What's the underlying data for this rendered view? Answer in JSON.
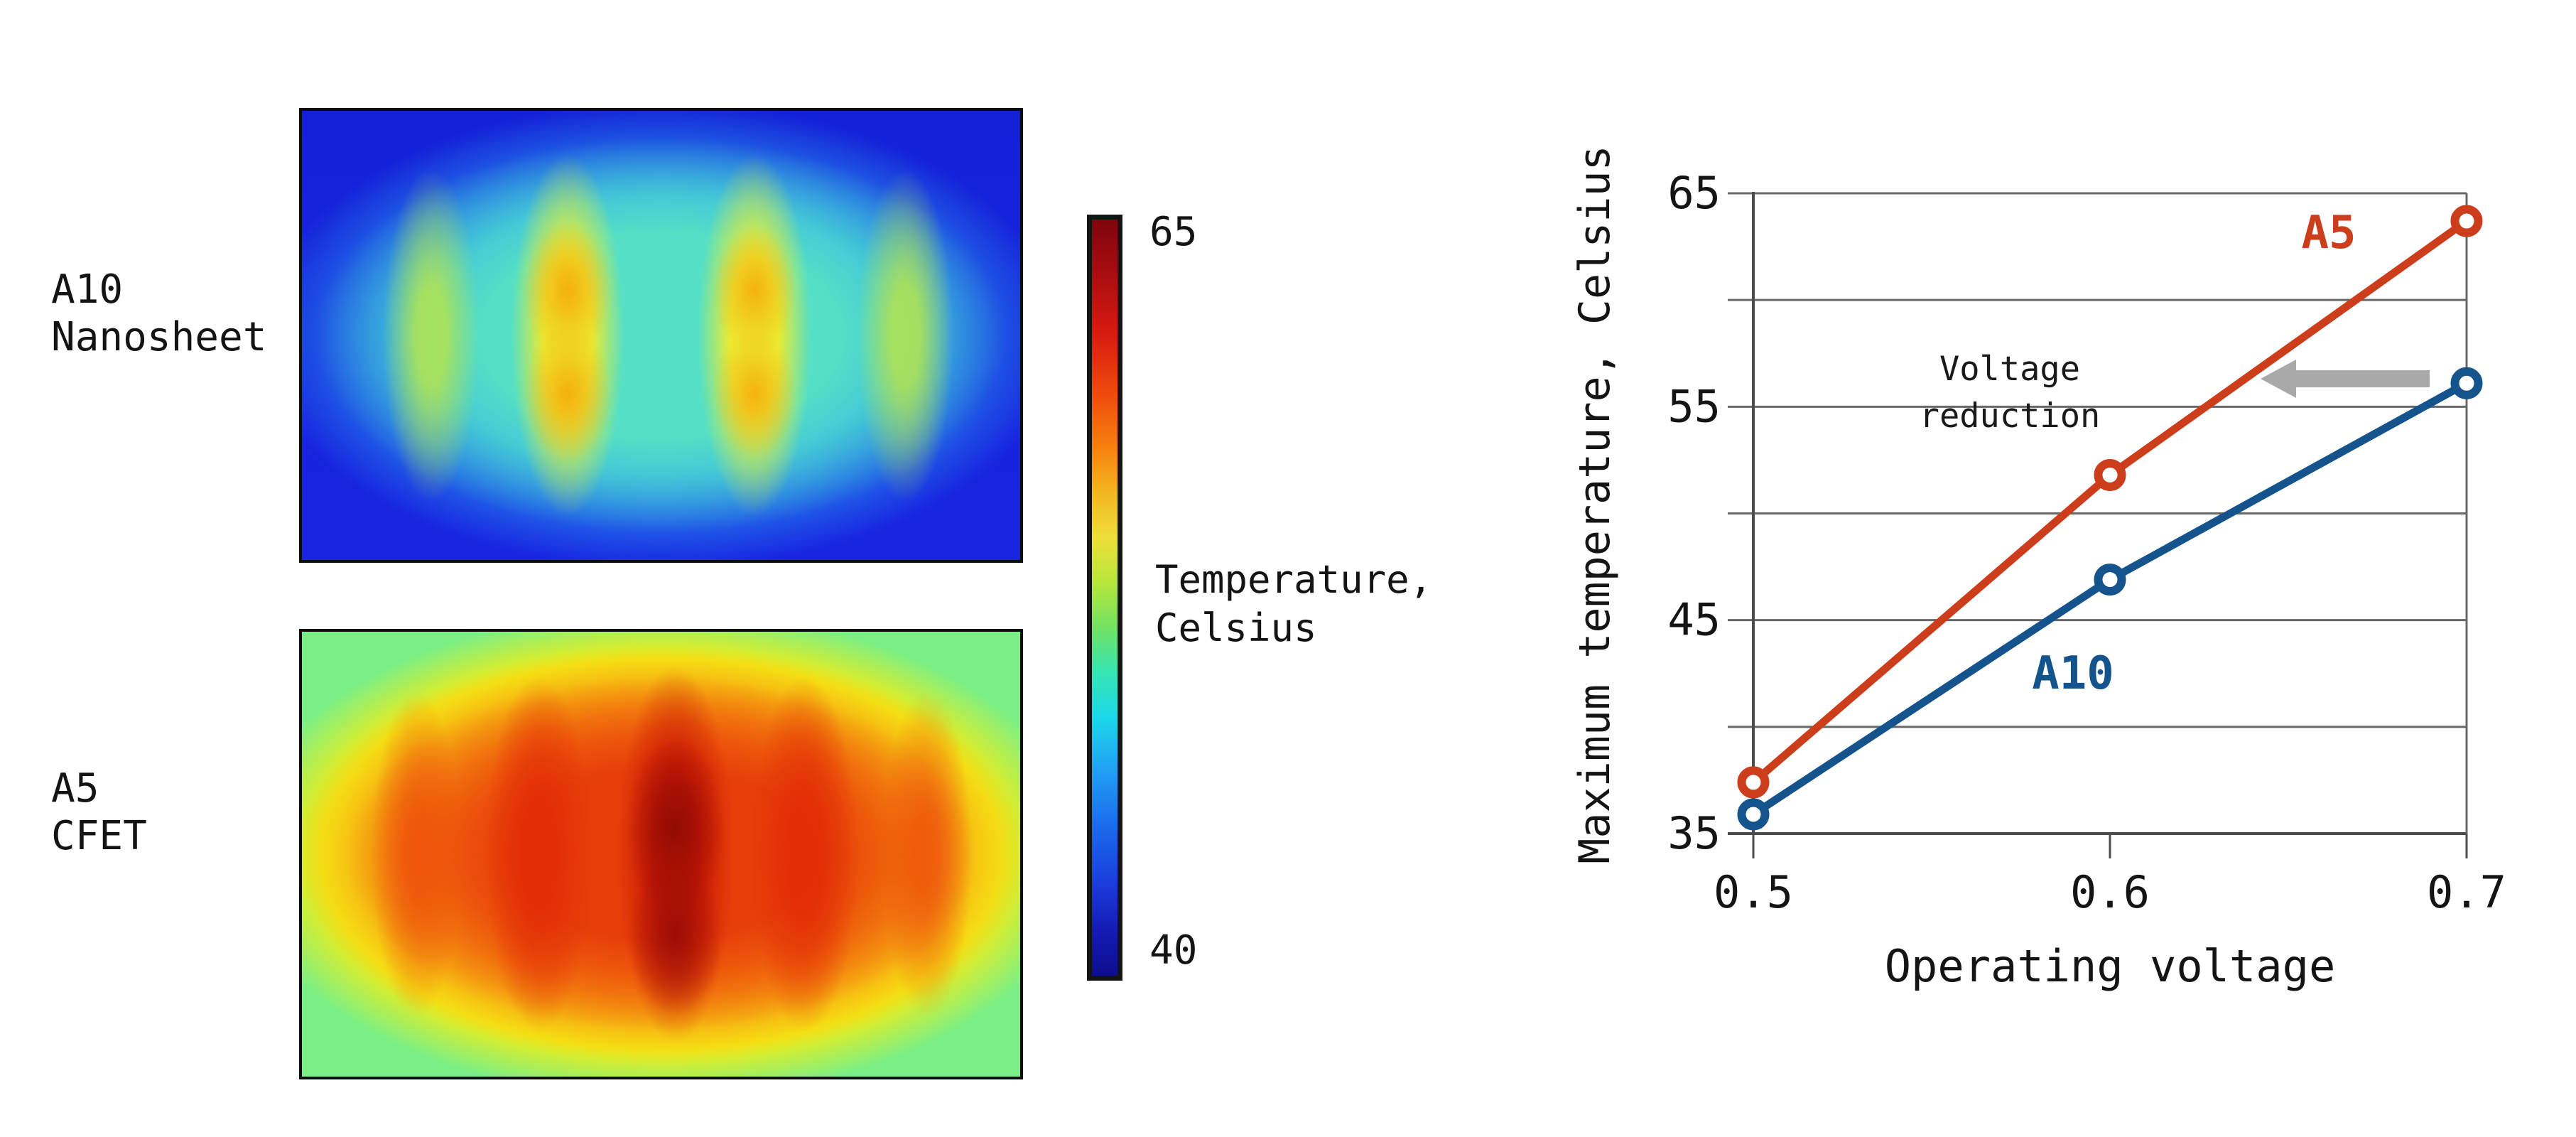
{
  "page": {
    "background": "#ffffff"
  },
  "left_panel": {
    "maps": [
      {
        "label": "A10\nNanosheet"
      },
      {
        "label": "A5\nCFET"
      }
    ]
  },
  "colorbar": {
    "max_label": "65",
    "min_label": "40",
    "title": "Temperature,\nCelsius"
  },
  "chart_data": [
    {
      "type": "heatmap",
      "label": "A10 Nanosheet",
      "colormap": "jet",
      "colorbar_range": [
        40,
        65
      ],
      "appearance": "cool map: deep blue edges, cyan interior, four vertical yellow-green stripes, two with paired yellow-orange hot cores"
    },
    {
      "type": "heatmap",
      "label": "A5 CFET",
      "colormap": "jet",
      "colorbar_range": [
        40,
        65
      ],
      "appearance": "hot map: green corners, yellow rim, orange-red interior, five vertical red stripes with darkest red center column"
    },
    {
      "type": "line",
      "title": "",
      "xlabel": "Operating voltage",
      "ylabel": "Maximum temperature, Celsius",
      "x": [
        0.5,
        0.6,
        0.7
      ],
      "xticks": [
        "0.5",
        "0.6",
        "0.7"
      ],
      "yticks": [
        65,
        55,
        45,
        35
      ],
      "xlim": [
        0.5,
        0.7
      ],
      "ylim": [
        35,
        65
      ],
      "grid_step": 5,
      "grid": true,
      "legend_position": "inline-labels",
      "series": [
        {
          "name": "A5",
          "color": "#cc3e1b",
          "values": [
            37.4,
            51.8,
            63.7
          ]
        },
        {
          "name": "A10",
          "color": "#15538c",
          "values": [
            35.9,
            46.9,
            56.1
          ]
        }
      ],
      "annotation": {
        "text": "Voltage reduction",
        "arrow_color": "#a9a9a9",
        "arrow_direction": "left",
        "at_y": 56
      }
    }
  ]
}
